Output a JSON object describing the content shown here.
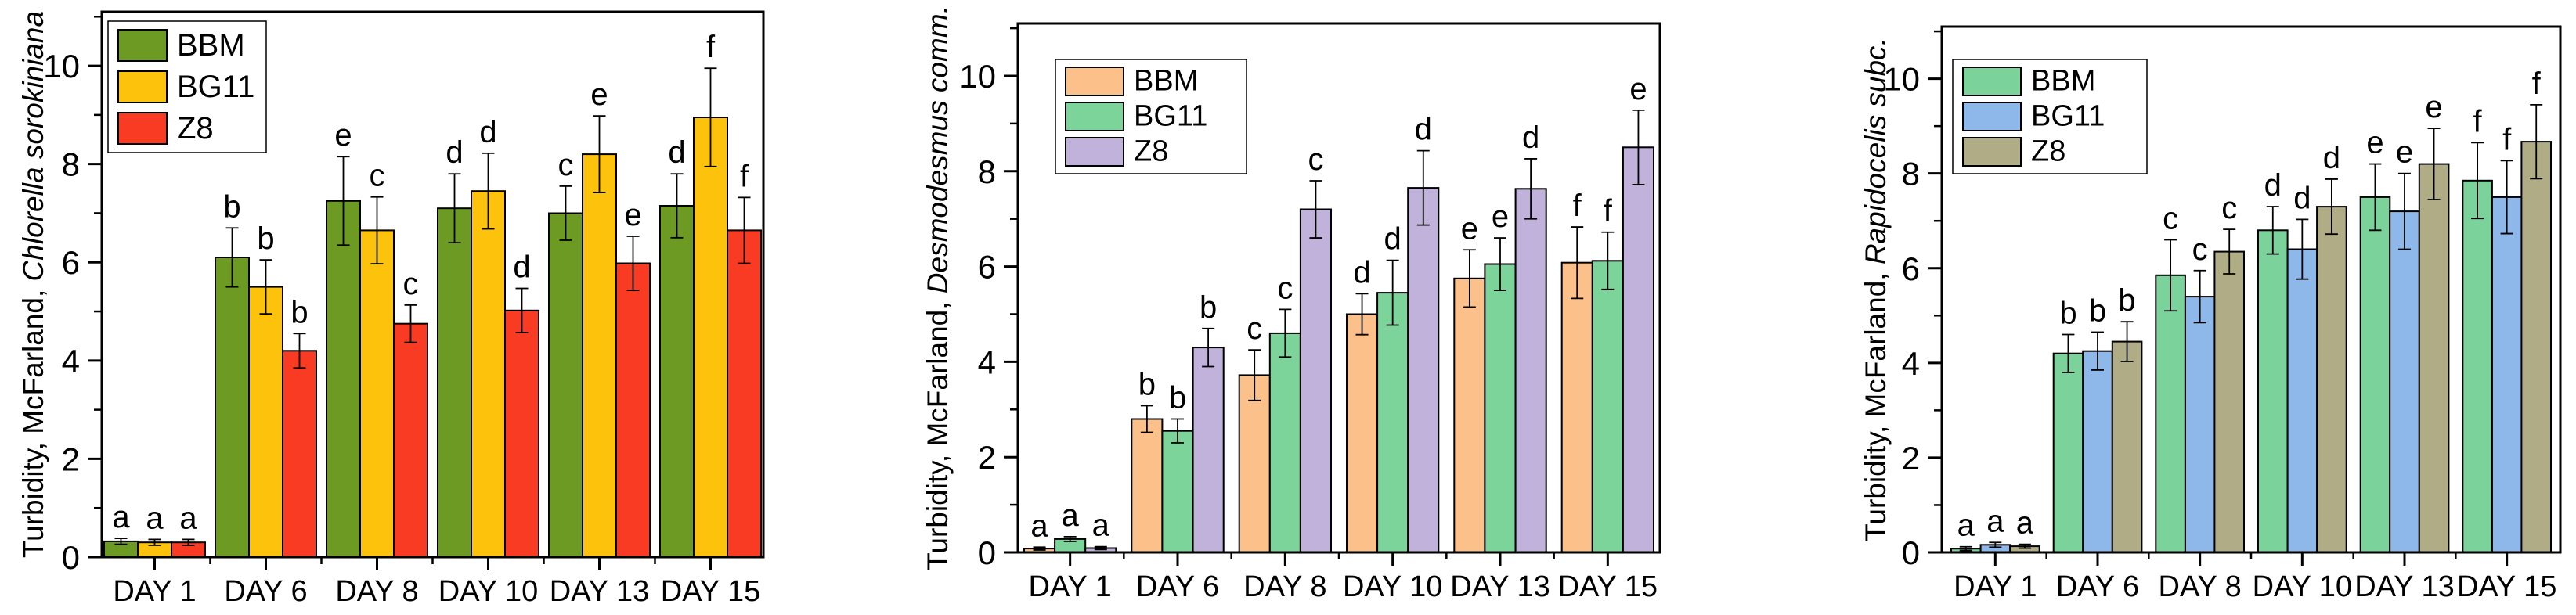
{
  "figure": {
    "background": "#ffffff",
    "description_visible_text_only": true
  },
  "chart_data": [
    {
      "type": "bar",
      "ylabel": "Turbidity, McFarland, Chlorella sorokiniana",
      "ylabel_prefix": "Turbidity, McFarland, ",
      "ylabel_species": "Chlorella sorokiniana",
      "xlabel": "",
      "categories": [
        "DAY 1",
        "DAY 6",
        "DAY 8",
        "DAY 10",
        "DAY 13",
        "DAY 15"
      ],
      "series": [
        {
          "name": "BBM",
          "color": "#6C9A22",
          "values": [
            0.32,
            6.1,
            7.25,
            7.1,
            7.0,
            7.15
          ],
          "errors": [
            0.06,
            0.6,
            0.9,
            0.7,
            0.55,
            0.65
          ],
          "letters": [
            "a",
            "b",
            "e",
            "d",
            "c",
            "d"
          ]
        },
        {
          "name": "BG11",
          "color": "#FDC20C",
          "values": [
            0.3,
            5.5,
            6.65,
            7.45,
            8.2,
            8.95
          ],
          "errors": [
            0.06,
            0.55,
            0.68,
            0.77,
            0.78,
            1.0
          ],
          "letters": [
            "a",
            "b",
            "c",
            "d",
            "e",
            "f"
          ]
        },
        {
          "name": "Z8",
          "color": "#FA3B23",
          "values": [
            0.3,
            4.2,
            4.75,
            5.02,
            5.98,
            6.65
          ],
          "errors": [
            0.06,
            0.35,
            0.38,
            0.45,
            0.55,
            0.67
          ],
          "letters": [
            "a",
            "b",
            "c",
            "d",
            "e",
            "f"
          ]
        }
      ],
      "yticks": [
        0,
        2,
        4,
        6,
        8,
        10
      ],
      "minor_yticks": [
        1,
        3,
        5,
        7,
        9,
        11
      ],
      "ylim": [
        0,
        11.1
      ],
      "legend_position": "top-left",
      "grid": false
    },
    {
      "type": "bar",
      "ylabel": "Turbidity, McFarland, Desmodesmus comm.",
      "ylabel_prefix": "Turbidity, McFarland, ",
      "ylabel_species": "Desmodesmus comm.",
      "xlabel": "",
      "categories": [
        "DAY 1",
        "DAY 6",
        "DAY 8",
        "DAY 10",
        "DAY 13",
        "DAY 15"
      ],
      "series": [
        {
          "name": "BBM",
          "color": "#FCC18A",
          "values": [
            0.08,
            2.8,
            3.72,
            5.0,
            5.75,
            6.08
          ],
          "errors": [
            0.03,
            0.28,
            0.53,
            0.43,
            0.6,
            0.75
          ],
          "letters": [
            "a",
            "b",
            "c",
            "d",
            "e",
            "f"
          ]
        },
        {
          "name": "BG11",
          "color": "#7CD49A",
          "values": [
            0.28,
            2.55,
            4.6,
            5.45,
            6.05,
            6.12
          ],
          "errors": [
            0.05,
            0.25,
            0.5,
            0.68,
            0.55,
            0.6
          ],
          "letters": [
            "a",
            "b",
            "c",
            "d",
            "e",
            "f"
          ]
        },
        {
          "name": "Z8",
          "color": "#C1B2DB",
          "values": [
            0.09,
            4.3,
            7.2,
            7.65,
            7.63,
            8.5
          ],
          "errors": [
            0.03,
            0.4,
            0.6,
            0.78,
            0.63,
            0.78
          ],
          "letters": [
            "a",
            "b",
            "c",
            "d",
            "d",
            "e"
          ]
        }
      ],
      "yticks": [
        0,
        2,
        4,
        6,
        8,
        10
      ],
      "minor_yticks": [
        1,
        3,
        5,
        7,
        9,
        11
      ],
      "ylim": [
        0,
        11.1
      ],
      "legend_position": "top-left",
      "grid": false
    },
    {
      "type": "bar",
      "ylabel": "Turbidity, McFarland, Rapidocelis subc.",
      "ylabel_prefix": "Turbidity, McFarland, ",
      "ylabel_species": "Rapidocelis subc.",
      "xlabel": "",
      "categories": [
        "DAY 1",
        "DAY 6",
        "DAY 8",
        "DAY 10",
        "DAY 13",
        "DAY 15"
      ],
      "series": [
        {
          "name": "BBM",
          "color": "#7BD29B",
          "values": [
            0.08,
            4.2,
            5.85,
            6.8,
            7.5,
            7.85
          ],
          "errors": [
            0.04,
            0.4,
            0.75,
            0.5,
            0.7,
            0.8
          ],
          "letters": [
            "a",
            "b",
            "c",
            "d",
            "e",
            "f"
          ]
        },
        {
          "name": "BG11",
          "color": "#8FB8EA",
          "values": [
            0.16,
            4.25,
            5.4,
            6.4,
            7.2,
            7.5
          ],
          "errors": [
            0.05,
            0.4,
            0.55,
            0.63,
            0.8,
            0.77
          ],
          "letters": [
            "a",
            "b",
            "c",
            "d",
            "e",
            "f"
          ]
        },
        {
          "name": "Z8",
          "color": "#B0AD86",
          "values": [
            0.13,
            4.45,
            6.35,
            7.3,
            8.2,
            8.67
          ],
          "errors": [
            0.04,
            0.42,
            0.47,
            0.58,
            0.75,
            0.78
          ],
          "letters": [
            "a",
            "b",
            "c",
            "d",
            "e",
            "f"
          ]
        }
      ],
      "yticks": [
        0,
        2,
        4,
        6,
        8,
        10
      ],
      "minor_yticks": [
        1,
        3,
        5,
        7,
        9,
        11
      ],
      "ylim": [
        0,
        11.1
      ],
      "legend_position": "top-left",
      "grid": false
    }
  ]
}
